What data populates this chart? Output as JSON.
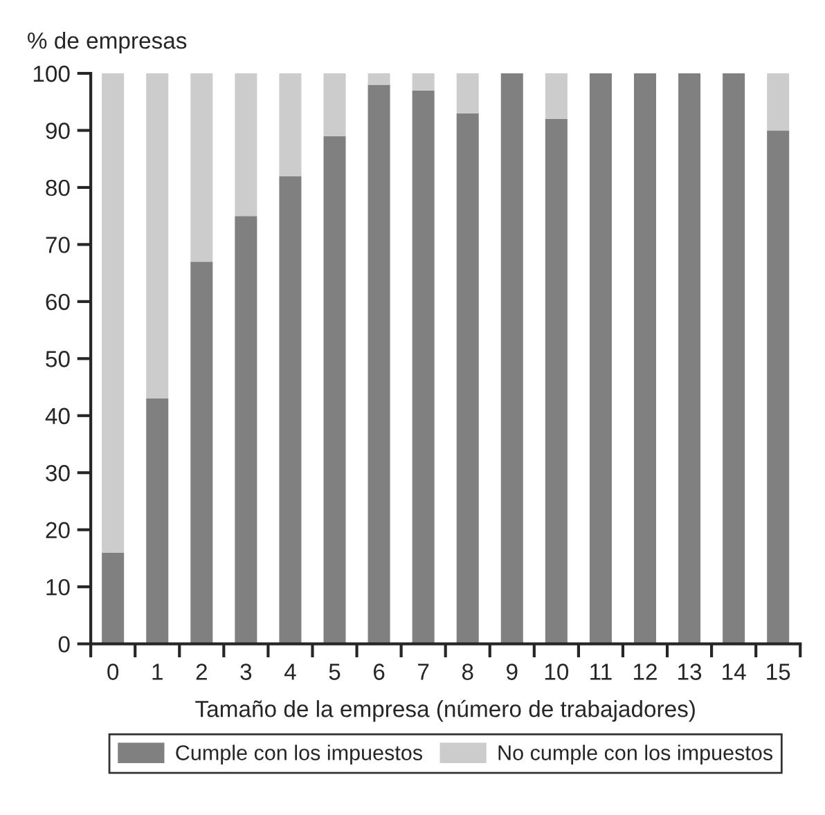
{
  "chart_data": {
    "type": "bar",
    "stacked": true,
    "ylabel": "% de empresas",
    "xlabel": "Tamaño de la empresa (número de trabajadores)",
    "categories": [
      "0",
      "1",
      "2",
      "3",
      "4",
      "5",
      "6",
      "7",
      "8",
      "9",
      "10",
      "11",
      "12",
      "13",
      "14",
      "15"
    ],
    "series": [
      {
        "name": "Cumple con los impuestos",
        "color": "#808080",
        "values": [
          16,
          43,
          67,
          75,
          82,
          89,
          98,
          97,
          93,
          100,
          92,
          100,
          100,
          100,
          100,
          90
        ]
      },
      {
        "name": "No cumple con los impuestos",
        "color": "#cccccc",
        "values": [
          84,
          57,
          33,
          25,
          18,
          11,
          2,
          3,
          7,
          0,
          8,
          0,
          0,
          0,
          0,
          10
        ]
      }
    ],
    "ylim": [
      0,
      100
    ],
    "yticks": [
      0,
      10,
      20,
      30,
      40,
      50,
      60,
      70,
      80,
      90,
      100
    ],
    "grid": false,
    "legend": "bottom"
  }
}
